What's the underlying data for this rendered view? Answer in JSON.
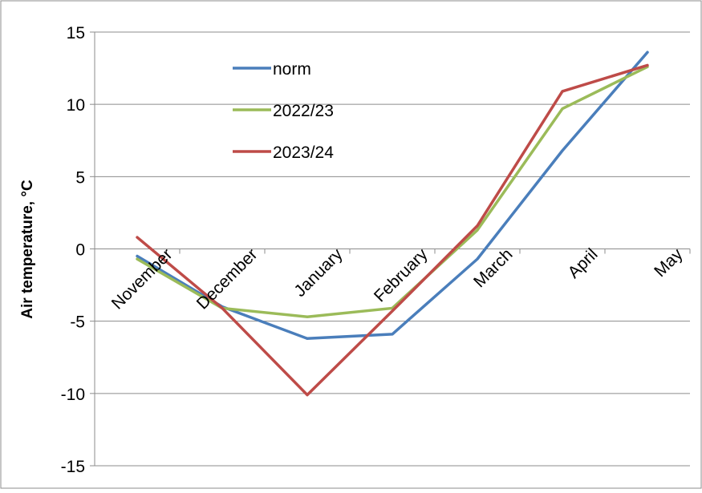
{
  "chart_data": {
    "type": "line",
    "title": "",
    "xlabel": "",
    "ylabel": "Air temperature, °C",
    "categories": [
      "November",
      "December",
      "January",
      "February",
      "March",
      "April",
      "May"
    ],
    "ylim": [
      -15,
      15
    ],
    "yticks": [
      -15,
      -10,
      -5,
      0,
      5,
      10,
      15
    ],
    "grid": "horizontal",
    "legend_position": "top-left inside",
    "series": [
      {
        "name": "norm",
        "color": "#4A7EBB",
        "values": [
          -0.5,
          -4.0,
          -6.2,
          -5.9,
          -0.7,
          6.8,
          13.6
        ]
      },
      {
        "name": "2022/23",
        "color": "#9BBB59",
        "values": [
          -0.7,
          -4.1,
          -4.7,
          -4.1,
          1.3,
          9.7,
          12.6
        ]
      },
      {
        "name": "2023/24",
        "color": "#BE4B48",
        "values": [
          0.8,
          -4.1,
          -10.1,
          -4.3,
          1.6,
          10.9,
          12.7
        ]
      }
    ]
  }
}
